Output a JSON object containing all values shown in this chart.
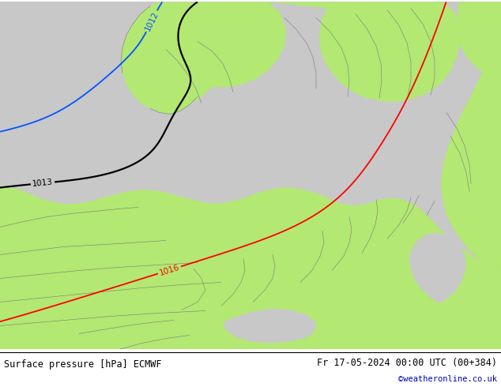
{
  "title_left": "Surface pressure [hPa] ECMWF",
  "title_right": "Fr 17-05-2024 00:00 UTC (00+384)",
  "credit": "©weatheronline.co.uk",
  "land_color": "#b3e873",
  "sea_color": "#c8c8c8",
  "white_color": "#ffffff",
  "border_color": "#7a7a7a",
  "figsize": [
    6.34,
    4.9
  ],
  "dpi": 100,
  "font_family": "monospace",
  "footer_color": "#ffffff",
  "line_colors": {
    "black": "#000000",
    "blue": "#0055ff",
    "red": "#ff0000"
  }
}
